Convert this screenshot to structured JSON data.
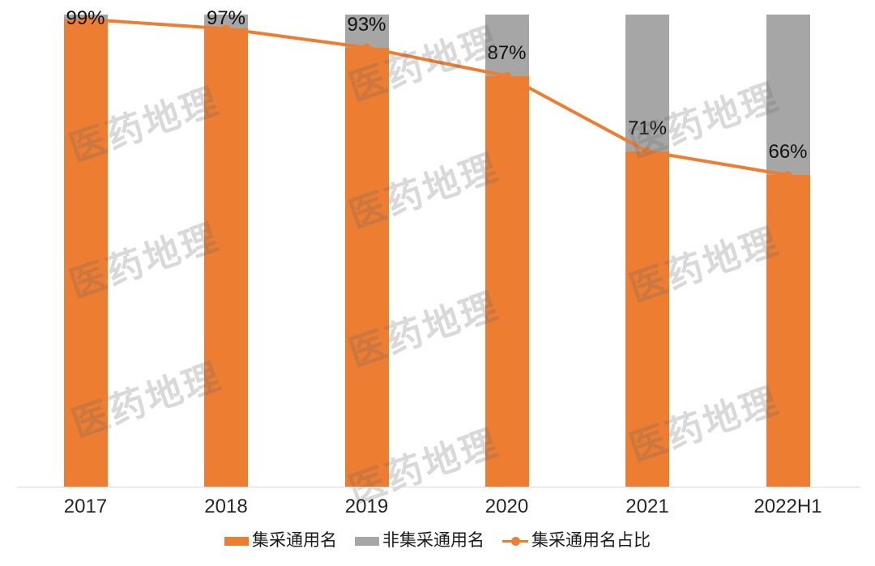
{
  "chart_data": {
    "type": "bar",
    "subtype": "stacked-100-bar-with-line",
    "categories": [
      "2017",
      "2018",
      "2019",
      "2020",
      "2021",
      "2022H1"
    ],
    "series": [
      {
        "name": "集采通用名",
        "type": "bar",
        "values": [
          99,
          97,
          93,
          87,
          71,
          66
        ],
        "color": "#ED7D31"
      },
      {
        "name": "非集采通用名",
        "type": "bar",
        "values": [
          1,
          3,
          7,
          13,
          29,
          34
        ],
        "color": "#A6A6A6"
      },
      {
        "name": "集采通用名占比",
        "type": "line",
        "values": [
          99,
          97,
          93,
          87,
          71,
          66
        ],
        "color": "#ED7D31"
      }
    ],
    "data_labels": [
      "99%",
      "97%",
      "93%",
      "87%",
      "71%",
      "66%"
    ],
    "title": "",
    "xlabel": "",
    "ylabel": "",
    "ylim": [
      0,
      100
    ],
    "grid": false,
    "legend_position": "bottom"
  },
  "legend": {
    "items": [
      {
        "label": "集采通用名",
        "marker": "bar-swatch",
        "color": "#ED7D31"
      },
      {
        "label": "非集采通用名",
        "marker": "bar-swatch",
        "color": "#A6A6A6"
      },
      {
        "label": "集采通用名占比",
        "marker": "line-dot",
        "color": "#ED7D31"
      }
    ]
  },
  "watermark": {
    "text": "医药地理"
  },
  "colors": {
    "bar_primary": "#ED7D31",
    "bar_secondary": "#A6A6A6",
    "line": "#ED7D31",
    "axis_line": "#D9D9D9",
    "label_text": "#111111",
    "axis_text": "#262626"
  }
}
